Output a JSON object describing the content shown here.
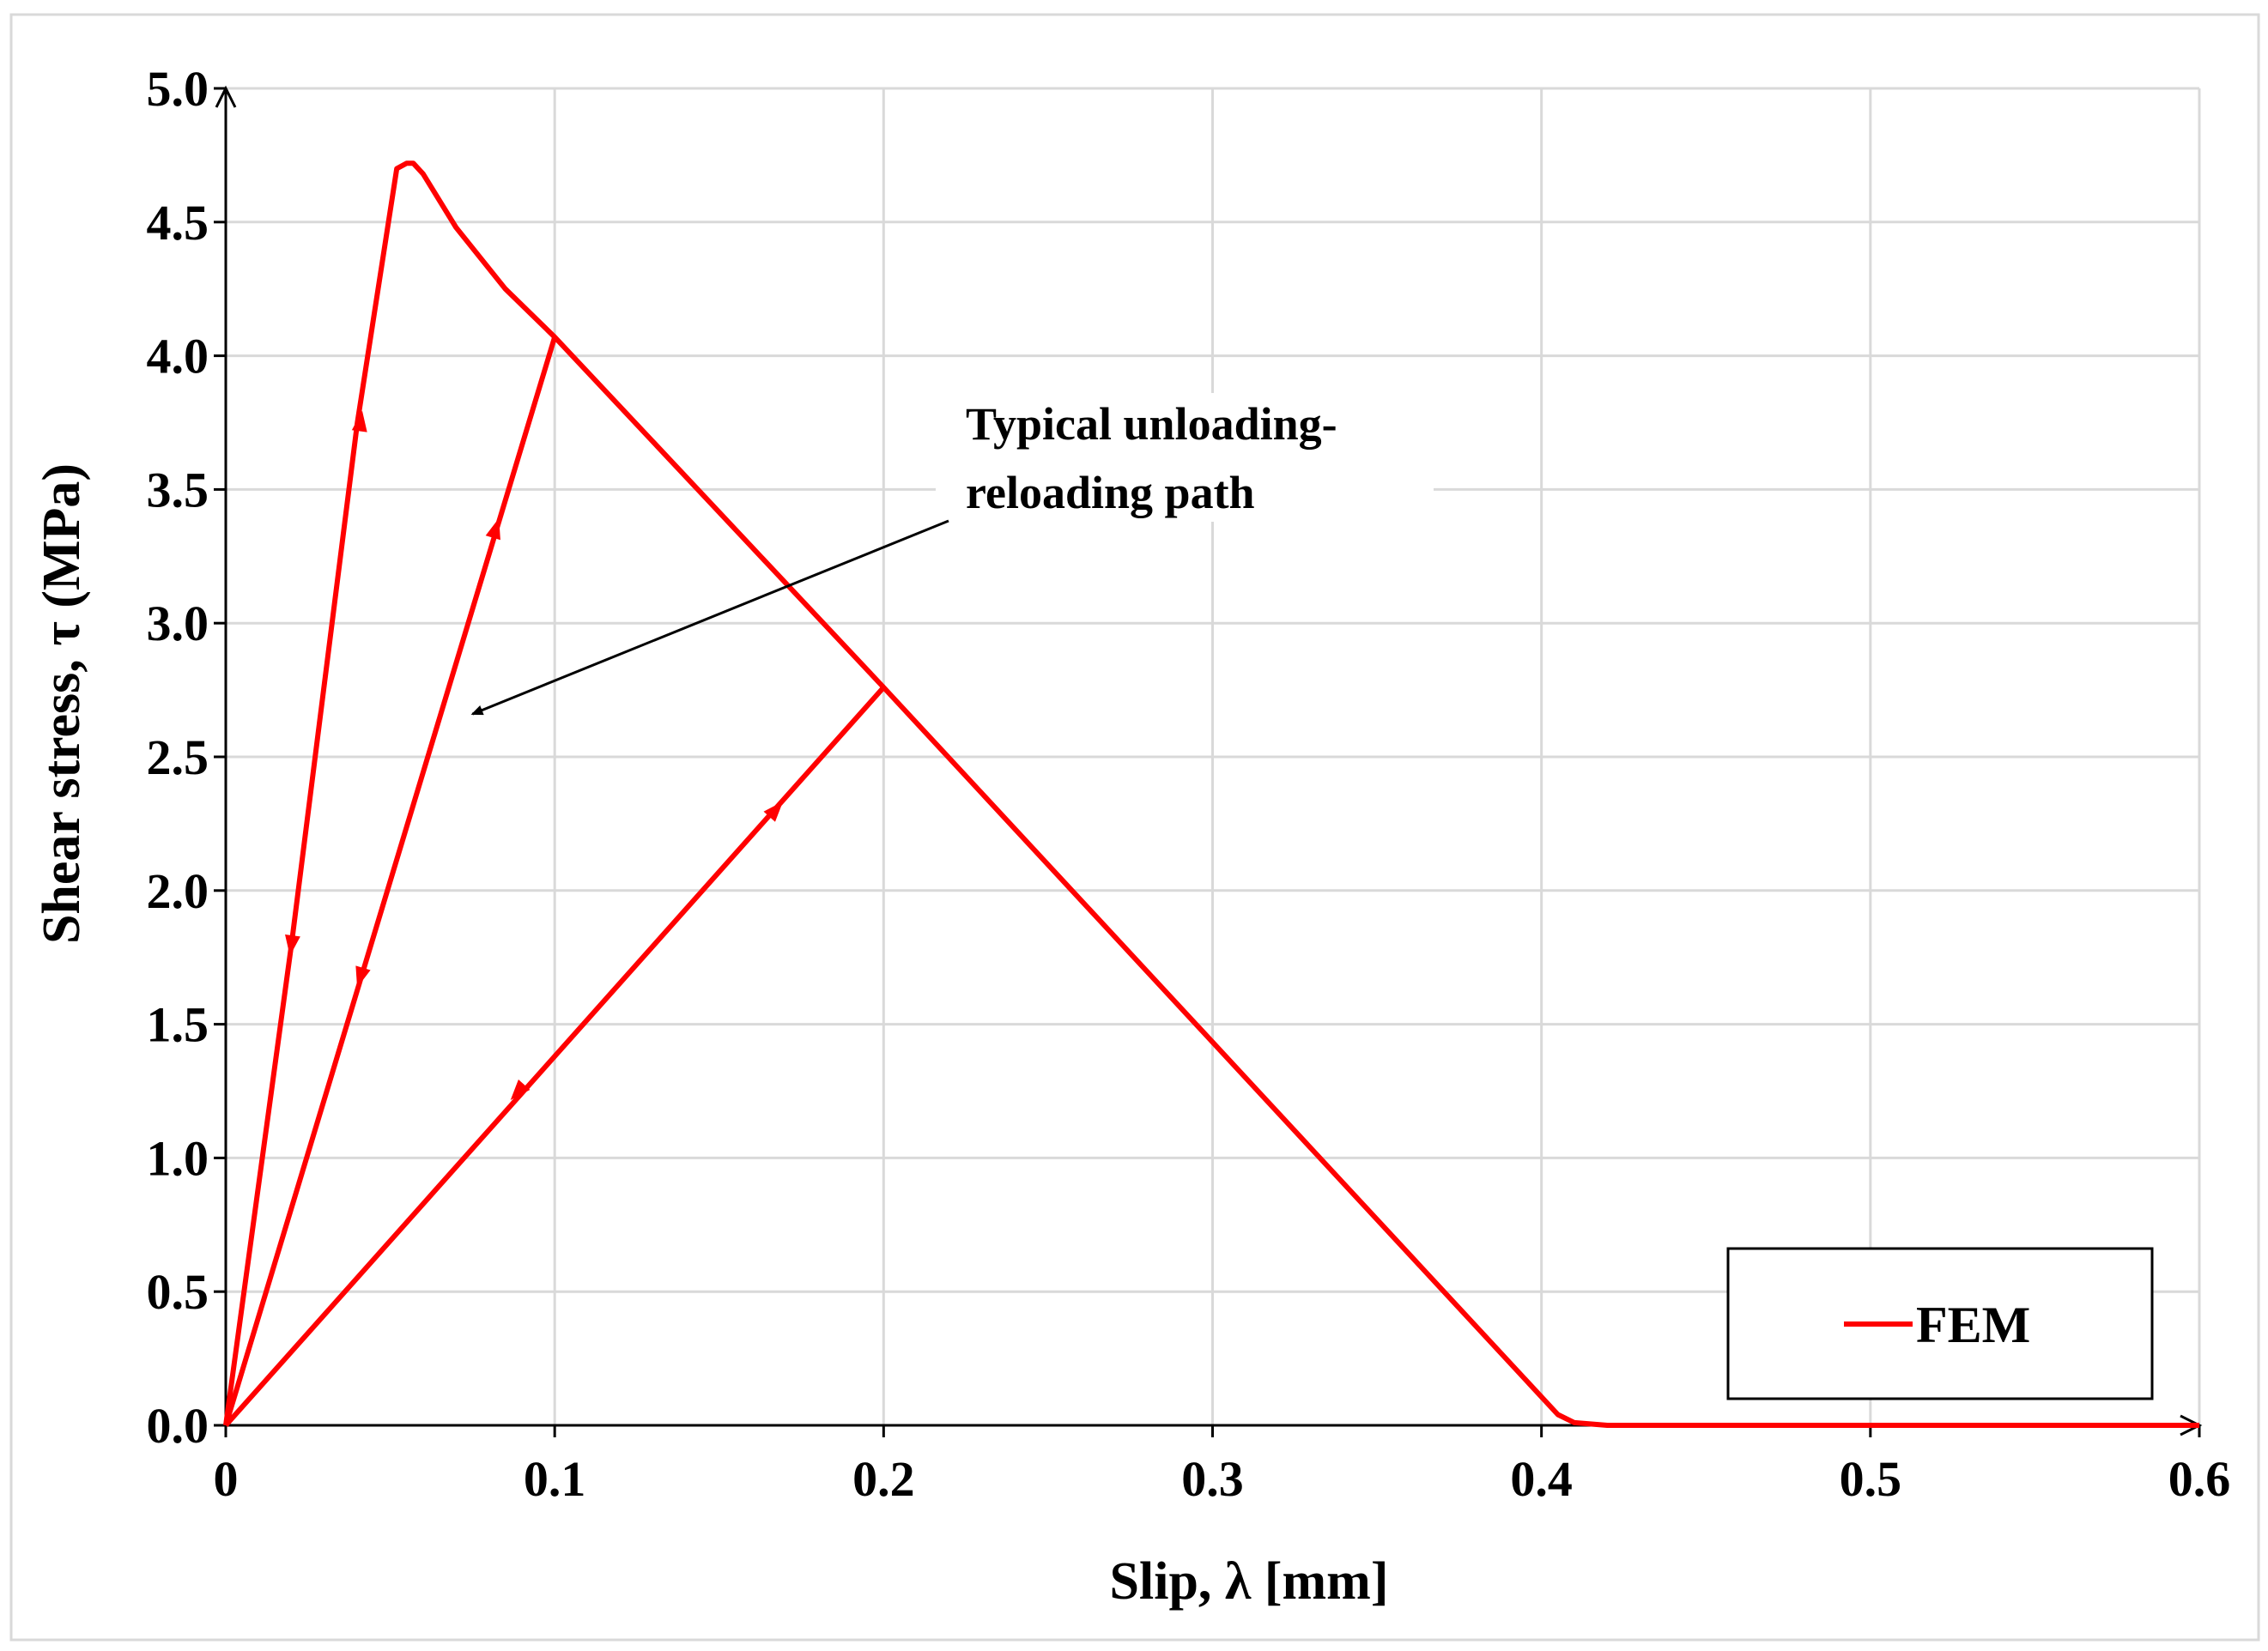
{
  "chart_data": {
    "type": "line",
    "title": "",
    "xlabel": "Slip, λ [mm]",
    "ylabel": "Shear stress,  τ (MPa)",
    "xlim": [
      0,
      0.6
    ],
    "ylim": [
      0,
      5.0
    ],
    "xticks": [
      "0",
      "0.1",
      "0.2",
      "0.3",
      "0.4",
      "0.5",
      "0.6"
    ],
    "yticks": [
      "0.0",
      "0.5",
      "1.0",
      "1.5",
      "2.0",
      "2.5",
      "3.0",
      "3.5",
      "4.0",
      "4.5",
      "5.0"
    ],
    "grid": true,
    "legend_position": "bottom-right",
    "colors": {
      "series": "#ff0000",
      "grid": "#d9d9d9",
      "axis": "#000000"
    },
    "series": [
      {
        "name": "FEM",
        "x": [
          0,
          0.02,
          0.04,
          0.052,
          0.055,
          0.057,
          0.06,
          0.07,
          0.085,
          0.1,
          0.2,
          0.405,
          0.41,
          0.42,
          0.6
        ],
        "y": [
          0,
          1.8,
          3.75,
          4.7,
          4.72,
          4.72,
          4.68,
          4.48,
          4.25,
          4.07,
          2.76,
          0.04,
          0.01,
          0,
          0
        ]
      }
    ],
    "unloading_reloading_paths": [
      {
        "from": [
          0.1,
          4.07
        ],
        "to": [
          0,
          0
        ]
      },
      {
        "from": [
          0.2,
          2.76
        ],
        "to": [
          0,
          0
        ]
      }
    ],
    "direction_arrows": [
      {
        "x": 0.02,
        "y": 1.8,
        "direction": "down"
      },
      {
        "x": 0.041,
        "y": 3.75,
        "direction": "up"
      },
      {
        "x": 0.041,
        "y": 1.68,
        "direction": "down"
      },
      {
        "x": 0.082,
        "y": 3.35,
        "direction": "up"
      },
      {
        "x": 0.089,
        "y": 1.25,
        "direction": "down"
      },
      {
        "x": 0.167,
        "y": 2.3,
        "direction": "up"
      }
    ],
    "annotation": {
      "line1": "Typical unloading-",
      "line2": "reloading path",
      "arrow_target": [
        0.075,
        2.66
      ]
    },
    "legend": [
      "FEM"
    ]
  }
}
